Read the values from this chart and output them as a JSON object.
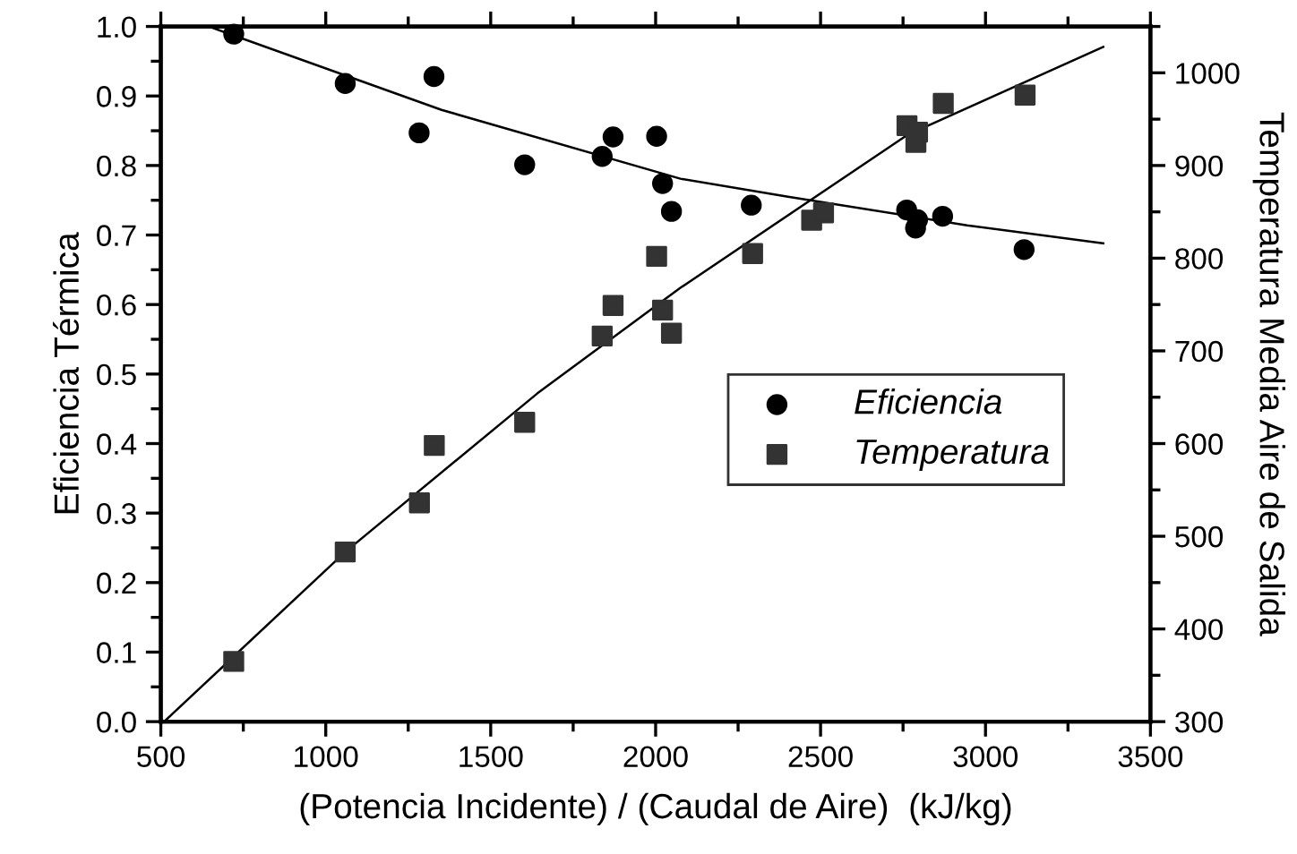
{
  "chart_data": {
    "type": "scatter",
    "xlabel": "(Potencia Incidente) / (Caudal de Aire)  (kJ/kg)",
    "ylabel": "Eficiencia Térmica",
    "y2label": "Temperatura Media Aire de Salida",
    "xlim": [
      500,
      3500
    ],
    "xticks": [
      500,
      1000,
      1500,
      2000,
      2500,
      3000,
      3500
    ],
    "ylim": [
      0,
      1
    ],
    "yticks": [
      {
        "value": 0,
        "label": "0.0"
      },
      0.1,
      0.2,
      0.3,
      0.4,
      0.5,
      0.6,
      0.7,
      0.8,
      0.9,
      {
        "value": 1,
        "label": "1.0"
      }
    ],
    "y2lim": [
      300,
      1050
    ],
    "y2ticks": [
      300,
      400,
      500,
      600,
      700,
      800,
      900,
      1000
    ],
    "legend": "center right",
    "grid": false,
    "series": [
      {
        "name": "Eficiencia",
        "marker": "circle",
        "color": "#000000",
        "x": [
          721,
          1059,
          1328,
          1283,
          1603,
          1838,
          1871,
          2003,
          2021,
          2048,
          2290,
          2481,
          2508,
          2761,
          2794,
          2788,
          2870,
          3117
        ],
        "values": [
          0.989,
          0.918,
          0.928,
          0.847,
          0.801,
          0.813,
          0.841,
          0.842,
          0.774,
          0.734,
          0.743,
          null,
          null,
          0.736,
          0.722,
          0.71,
          0.727,
          0.679
        ]
      },
      {
        "name": "Temperatura",
        "marker": "square",
        "axis": "y2",
        "color": "#333333",
        "x": [
          721,
          1059,
          1284,
          1329,
          1603,
          1838,
          1871,
          2003,
          2021,
          2048,
          2294,
          2473,
          2509,
          2762,
          2794,
          2789,
          2872,
          3120
        ],
        "values": [
          365,
          483,
          536,
          598,
          623,
          716,
          749,
          802,
          744,
          719,
          805,
          841,
          849,
          943,
          936,
          925,
          967,
          976
        ]
      },
      {
        "type": "line",
        "color": "#000000",
        "x": [
          645,
          1351,
          2075,
          2401,
          2944,
          3357
        ],
        "values": [
          1.0,
          0.88,
          0.781,
          0.755,
          0.714,
          0.688
        ]
      },
      {
        "type": "line",
        "axis": "y2",
        "color": "#000000",
        "x": [
          510,
          1059,
          1641,
          2075,
          2763,
          3357
        ],
        "values": [
          300,
          483,
          654,
          768,
          933,
          1028
        ]
      }
    ]
  }
}
